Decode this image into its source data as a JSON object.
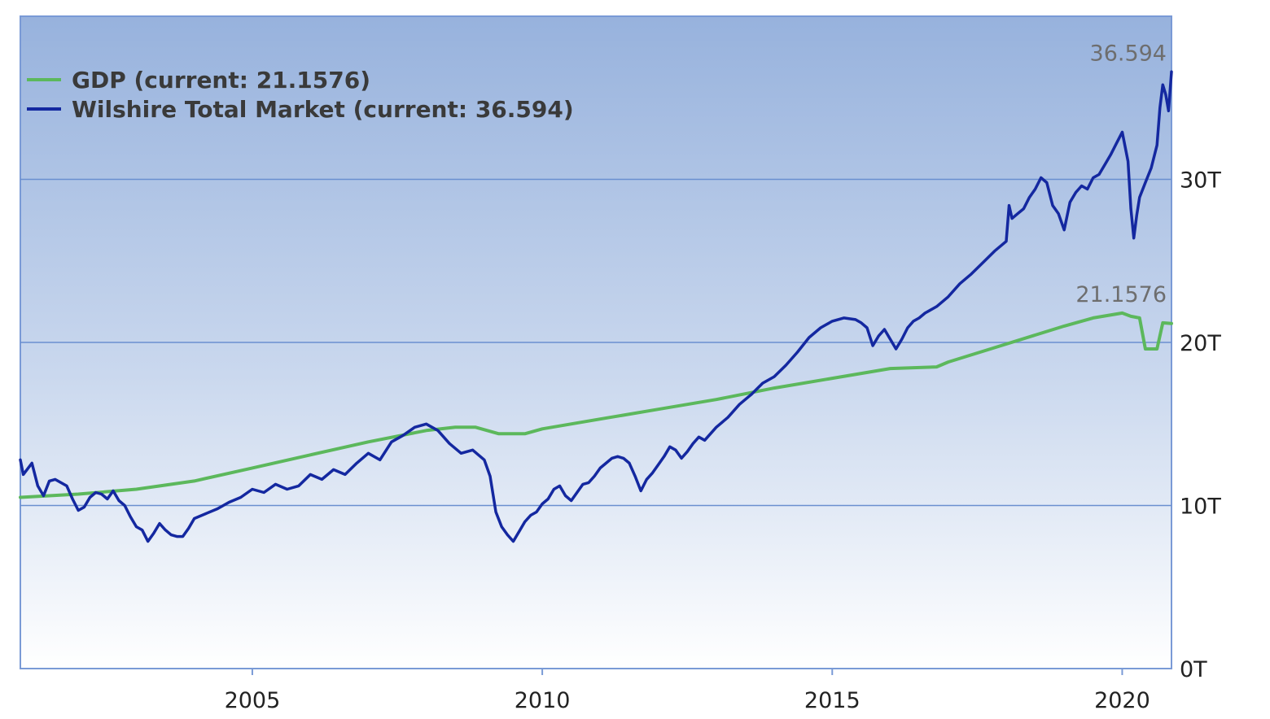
{
  "chart_data": {
    "type": "line",
    "title": "",
    "xlabel": "",
    "ylabel": "",
    "x_range": [
      2001.0,
      2020.85
    ],
    "ylim": [
      0,
      40
    ],
    "x_ticks": [
      2005,
      2010,
      2015,
      2020
    ],
    "x_tick_labels": [
      "2005",
      "2010",
      "2015",
      "2020"
    ],
    "y_ticks": [
      0,
      10,
      20,
      30
    ],
    "y_tick_labels": [
      "0T",
      "10T",
      "20T",
      "30T"
    ],
    "grid": true,
    "legend_position": "top-left",
    "legend": [
      {
        "label": "GDP (current: 21.1576)",
        "color": "#5cb85c"
      },
      {
        "label": "Wilshire Total Market (current: 36.594)",
        "color": "#1428a0"
      }
    ],
    "annotations": [
      {
        "text": "36.594",
        "series": "Wilshire Total Market"
      },
      {
        "text": "21.1576",
        "series": "GDP"
      }
    ],
    "series": [
      {
        "name": "GDP",
        "color": "#5cb85c",
        "points": [
          [
            2001.0,
            10.5
          ],
          [
            2002.0,
            10.7
          ],
          [
            2003.0,
            11.0
          ],
          [
            2004.0,
            11.5
          ],
          [
            2005.0,
            12.3
          ],
          [
            2006.0,
            13.1
          ],
          [
            2007.0,
            13.9
          ],
          [
            2008.0,
            14.6
          ],
          [
            2008.5,
            14.8
          ],
          [
            2008.85,
            14.8
          ],
          [
            2009.25,
            14.4
          ],
          [
            2009.7,
            14.4
          ],
          [
            2010.0,
            14.7
          ],
          [
            2011.0,
            15.3
          ],
          [
            2012.0,
            15.9
          ],
          [
            2013.0,
            16.5
          ],
          [
            2014.0,
            17.2
          ],
          [
            2015.0,
            17.8
          ],
          [
            2016.0,
            18.4
          ],
          [
            2016.8,
            18.5
          ],
          [
            2017.0,
            18.8
          ],
          [
            2018.0,
            19.9
          ],
          [
            2019.0,
            21.0
          ],
          [
            2019.5,
            21.5
          ],
          [
            2020.0,
            21.8
          ],
          [
            2020.15,
            21.6
          ],
          [
            2020.3,
            21.5
          ],
          [
            2020.4,
            19.6
          ],
          [
            2020.6,
            19.6
          ],
          [
            2020.7,
            21.2
          ],
          [
            2020.85,
            21.16
          ]
        ]
      },
      {
        "name": "Wilshire Total Market",
        "color": "#1428a0",
        "points": [
          [
            2001.0,
            12.8
          ],
          [
            2001.05,
            11.9
          ],
          [
            2001.2,
            12.6
          ],
          [
            2001.3,
            11.2
          ],
          [
            2001.4,
            10.6
          ],
          [
            2001.5,
            11.5
          ],
          [
            2001.6,
            11.6
          ],
          [
            2001.8,
            11.2
          ],
          [
            2001.9,
            10.4
          ],
          [
            2002.0,
            9.7
          ],
          [
            2002.1,
            9.9
          ],
          [
            2002.2,
            10.5
          ],
          [
            2002.3,
            10.8
          ],
          [
            2002.4,
            10.7
          ],
          [
            2002.5,
            10.4
          ],
          [
            2002.6,
            10.9
          ],
          [
            2002.7,
            10.3
          ],
          [
            2002.8,
            10.0
          ],
          [
            2002.9,
            9.3
          ],
          [
            2003.0,
            8.7
          ],
          [
            2003.1,
            8.5
          ],
          [
            2003.2,
            7.8
          ],
          [
            2003.3,
            8.3
          ],
          [
            2003.4,
            8.9
          ],
          [
            2003.5,
            8.5
          ],
          [
            2003.6,
            8.2
          ],
          [
            2003.7,
            8.1
          ],
          [
            2003.8,
            8.1
          ],
          [
            2003.9,
            8.6
          ],
          [
            2004.0,
            9.2
          ],
          [
            2004.2,
            9.5
          ],
          [
            2004.4,
            9.8
          ],
          [
            2004.6,
            10.2
          ],
          [
            2004.8,
            10.5
          ],
          [
            2005.0,
            11.0
          ],
          [
            2005.2,
            10.8
          ],
          [
            2005.4,
            11.3
          ],
          [
            2005.6,
            11.0
          ],
          [
            2005.8,
            11.2
          ],
          [
            2006.0,
            11.9
          ],
          [
            2006.2,
            11.6
          ],
          [
            2006.4,
            12.2
          ],
          [
            2006.6,
            11.9
          ],
          [
            2006.8,
            12.6
          ],
          [
            2007.0,
            13.2
          ],
          [
            2007.2,
            12.8
          ],
          [
            2007.4,
            13.9
          ],
          [
            2007.6,
            14.3
          ],
          [
            2007.8,
            14.8
          ],
          [
            2008.0,
            15.0
          ],
          [
            2008.2,
            14.6
          ],
          [
            2008.4,
            13.8
          ],
          [
            2008.6,
            13.2
          ],
          [
            2008.8,
            13.4
          ],
          [
            2009.0,
            12.8
          ],
          [
            2009.1,
            11.8
          ],
          [
            2009.2,
            9.6
          ],
          [
            2009.3,
            8.7
          ],
          [
            2009.4,
            8.2
          ],
          [
            2009.5,
            7.8
          ],
          [
            2009.6,
            8.4
          ],
          [
            2009.7,
            9.0
          ],
          [
            2009.8,
            9.4
          ],
          [
            2009.9,
            9.6
          ],
          [
            2010.0,
            10.1
          ],
          [
            2010.1,
            10.4
          ],
          [
            2010.2,
            11.0
          ],
          [
            2010.3,
            11.2
          ],
          [
            2010.4,
            10.6
          ],
          [
            2010.5,
            10.3
          ],
          [
            2010.6,
            10.8
          ],
          [
            2010.7,
            11.3
          ],
          [
            2010.8,
            11.4
          ],
          [
            2010.9,
            11.8
          ],
          [
            2011.0,
            12.3
          ],
          [
            2011.1,
            12.6
          ],
          [
            2011.2,
            12.9
          ],
          [
            2011.3,
            13.0
          ],
          [
            2011.4,
            12.9
          ],
          [
            2011.5,
            12.6
          ],
          [
            2011.6,
            11.8
          ],
          [
            2011.7,
            10.9
          ],
          [
            2011.8,
            11.6
          ],
          [
            2011.9,
            12.0
          ],
          [
            2012.0,
            12.5
          ],
          [
            2012.1,
            13.0
          ],
          [
            2012.2,
            13.6
          ],
          [
            2012.3,
            13.4
          ],
          [
            2012.4,
            12.9
          ],
          [
            2012.5,
            13.3
          ],
          [
            2012.6,
            13.8
          ],
          [
            2012.7,
            14.2
          ],
          [
            2012.8,
            14.0
          ],
          [
            2012.9,
            14.4
          ],
          [
            2013.0,
            14.8
          ],
          [
            2013.2,
            15.4
          ],
          [
            2013.4,
            16.2
          ],
          [
            2013.6,
            16.8
          ],
          [
            2013.8,
            17.5
          ],
          [
            2014.0,
            17.9
          ],
          [
            2014.2,
            18.6
          ],
          [
            2014.4,
            19.4
          ],
          [
            2014.6,
            20.3
          ],
          [
            2014.8,
            20.9
          ],
          [
            2015.0,
            21.3
          ],
          [
            2015.2,
            21.5
          ],
          [
            2015.4,
            21.4
          ],
          [
            2015.5,
            21.2
          ],
          [
            2015.6,
            20.9
          ],
          [
            2015.7,
            19.8
          ],
          [
            2015.8,
            20.4
          ],
          [
            2015.9,
            20.8
          ],
          [
            2016.0,
            20.2
          ],
          [
            2016.1,
            19.6
          ],
          [
            2016.2,
            20.2
          ],
          [
            2016.3,
            20.9
          ],
          [
            2016.4,
            21.3
          ],
          [
            2016.5,
            21.5
          ],
          [
            2016.6,
            21.8
          ],
          [
            2016.8,
            22.2
          ],
          [
            2017.0,
            22.8
          ],
          [
            2017.2,
            23.6
          ],
          [
            2017.4,
            24.2
          ],
          [
            2017.6,
            24.9
          ],
          [
            2017.8,
            25.6
          ],
          [
            2018.0,
            26.2
          ],
          [
            2018.05,
            28.4
          ],
          [
            2018.1,
            27.6
          ],
          [
            2018.2,
            27.9
          ],
          [
            2018.3,
            28.2
          ],
          [
            2018.4,
            28.9
          ],
          [
            2018.5,
            29.4
          ],
          [
            2018.6,
            30.1
          ],
          [
            2018.7,
            29.8
          ],
          [
            2018.8,
            28.4
          ],
          [
            2018.9,
            27.9
          ],
          [
            2019.0,
            26.9
          ],
          [
            2019.1,
            28.6
          ],
          [
            2019.2,
            29.2
          ],
          [
            2019.3,
            29.6
          ],
          [
            2019.4,
            29.4
          ],
          [
            2019.5,
            30.1
          ],
          [
            2019.6,
            30.3
          ],
          [
            2019.7,
            30.9
          ],
          [
            2019.8,
            31.5
          ],
          [
            2019.9,
            32.2
          ],
          [
            2020.0,
            32.9
          ],
          [
            2020.1,
            31.1
          ],
          [
            2020.15,
            28.2
          ],
          [
            2020.2,
            26.4
          ],
          [
            2020.25,
            27.8
          ],
          [
            2020.3,
            28.9
          ],
          [
            2020.4,
            29.8
          ],
          [
            2020.5,
            30.7
          ],
          [
            2020.6,
            32.1
          ],
          [
            2020.65,
            34.4
          ],
          [
            2020.7,
            35.8
          ],
          [
            2020.75,
            35.2
          ],
          [
            2020.8,
            34.2
          ],
          [
            2020.85,
            36.594
          ]
        ]
      }
    ]
  }
}
